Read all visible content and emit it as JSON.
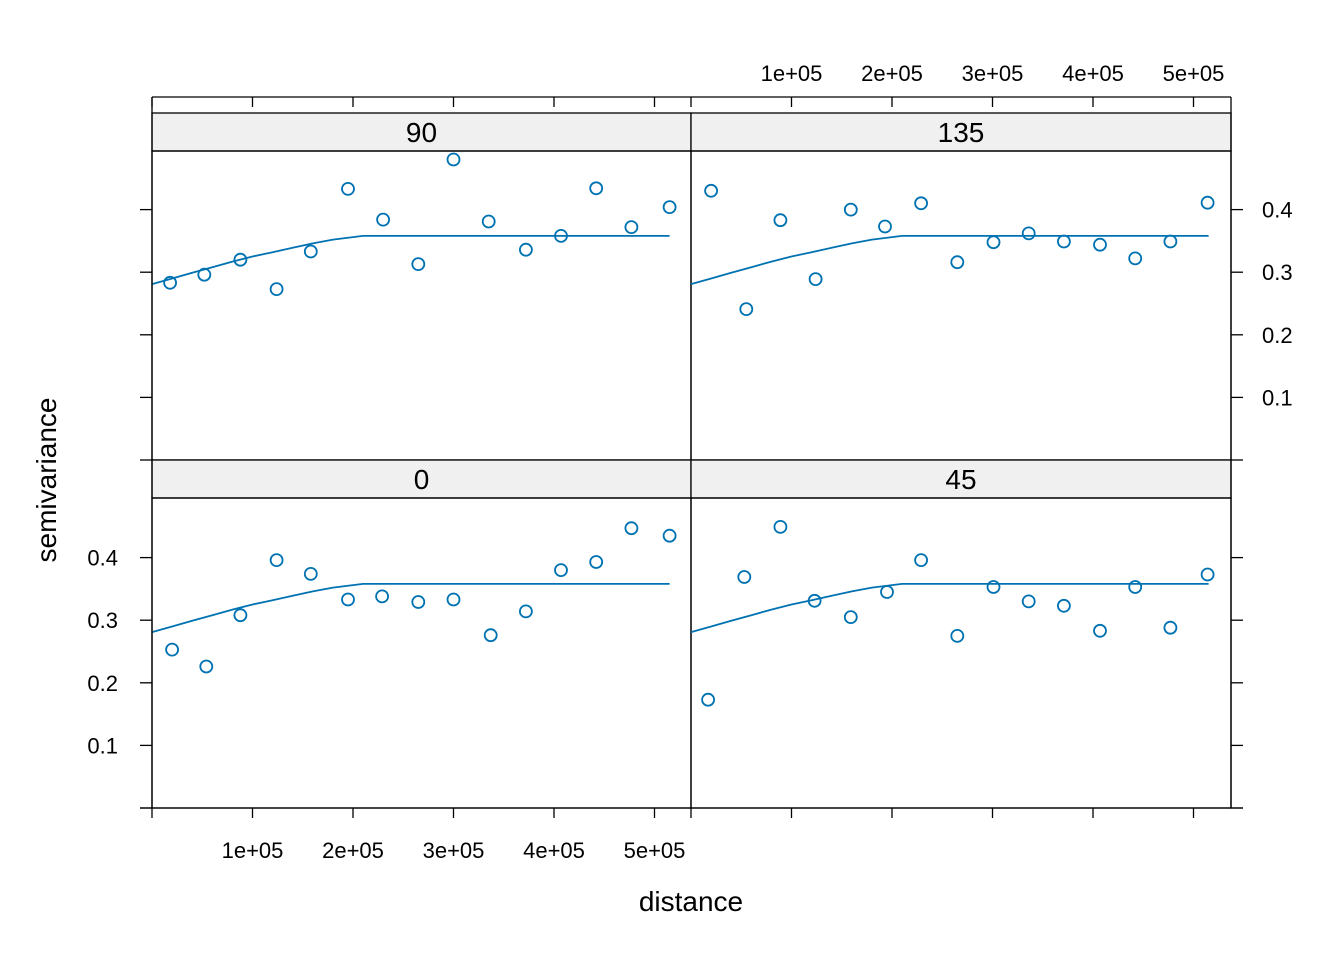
{
  "chart_data": {
    "type": "scatter",
    "layout": "2x2 lattice panels",
    "xlabel": "distance",
    "ylabel": "semivariance",
    "xlim": [
      0,
      535000
    ],
    "ylim": [
      0,
      0.49
    ],
    "x_ticks": [
      100000,
      200000,
      300000,
      400000,
      500000
    ],
    "x_tick_labels": [
      "1e+05",
      "2e+05",
      "3e+05",
      "4e+05",
      "5e+05"
    ],
    "y_ticks": [
      0.1,
      0.2,
      0.3,
      0.4
    ],
    "y_tick_labels": [
      "0.1",
      "0.2",
      "0.3",
      "0.4"
    ],
    "color": "#0072b2",
    "grid": false,
    "panels": [
      {
        "label": "90",
        "position": "top-left",
        "x": [
          18000,
          52000,
          88000,
          124000,
          158000,
          195000,
          230000,
          265000,
          300000,
          335000,
          372000,
          407000,
          442000,
          477000,
          515000
        ],
        "y": [
          0.283,
          0.296,
          0.32,
          0.273,
          0.333,
          0.433,
          0.384,
          0.313,
          0.48,
          0.381,
          0.336,
          0.358,
          0.434,
          0.372,
          0.404
        ]
      },
      {
        "label": "135",
        "position": "top-right",
        "x": [
          20000,
          55000,
          89000,
          124000,
          159000,
          193000,
          229000,
          265000,
          301000,
          336000,
          371000,
          407000,
          442000,
          477000,
          514000
        ],
        "y": [
          0.43,
          0.241,
          0.383,
          0.289,
          0.4,
          0.373,
          0.41,
          0.316,
          0.348,
          0.362,
          0.349,
          0.344,
          0.322,
          0.349,
          0.411
        ]
      },
      {
        "label": "0",
        "position": "bottom-left",
        "x": [
          20000,
          54000,
          88000,
          124000,
          158000,
          195000,
          229000,
          265000,
          300000,
          337000,
          372000,
          407000,
          442000,
          477000,
          515000
        ],
        "y": [
          0.253,
          0.226,
          0.308,
          0.396,
          0.374,
          0.333,
          0.338,
          0.329,
          0.333,
          0.276,
          0.314,
          0.38,
          0.393,
          0.447,
          0.435
        ]
      },
      {
        "label": "45",
        "position": "bottom-right",
        "x": [
          17000,
          53000,
          89000,
          123000,
          159000,
          195000,
          229000,
          265000,
          301000,
          336000,
          371000,
          407000,
          442000,
          477000,
          514000
        ],
        "y": [
          0.173,
          0.369,
          0.449,
          0.331,
          0.305,
          0.345,
          0.396,
          0.275,
          0.353,
          0.33,
          0.323,
          0.283,
          0.353,
          0.288,
          0.373
        ]
      }
    ],
    "fitted_model": {
      "description": "variogram model line, identical in every panel",
      "x": [
        0,
        20000,
        40000,
        60000,
        80000,
        100000,
        120000,
        140000,
        160000,
        180000,
        200000,
        210000,
        240000,
        280000,
        320000,
        360000,
        400000,
        440000,
        480000,
        515000
      ],
      "y": [
        0.281,
        0.29,
        0.299,
        0.308,
        0.317,
        0.325,
        0.332,
        0.339,
        0.346,
        0.352,
        0.356,
        0.358,
        0.358,
        0.358,
        0.358,
        0.358,
        0.358,
        0.358,
        0.358,
        0.358
      ]
    }
  }
}
